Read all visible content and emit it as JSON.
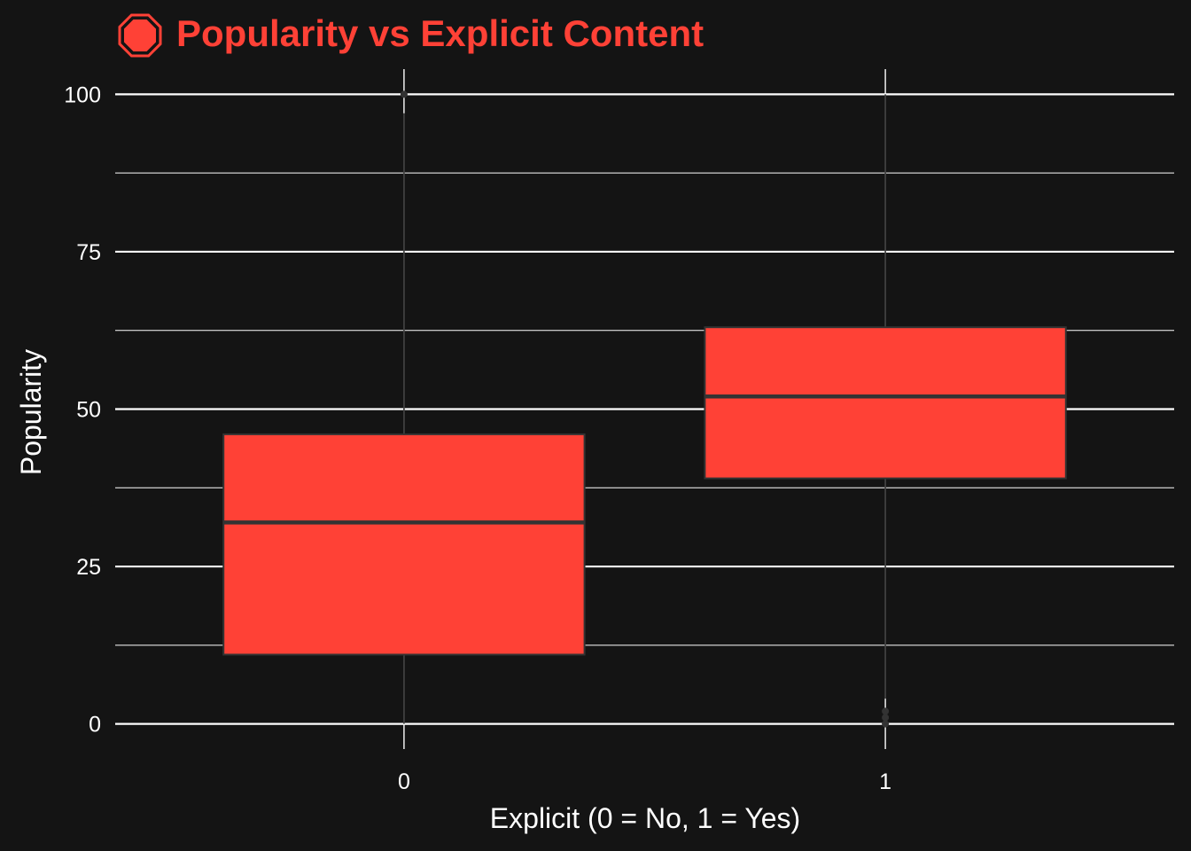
{
  "chart_data": {
    "type": "box",
    "title": "Popularity vs Explicit Content",
    "title_icon": "stop-sign-icon",
    "xlabel": "Explicit (0 = No, 1 = Yes)",
    "ylabel": "Popularity",
    "categories": [
      "0",
      "1"
    ],
    "ylim": [
      -4,
      104
    ],
    "y_ticks": [
      0,
      25,
      50,
      75,
      100
    ],
    "y_tick_labels": [
      "0",
      "25",
      "50",
      "75",
      "100"
    ],
    "grid": true,
    "boxes": [
      {
        "category": "0",
        "q1": 11,
        "median": 32,
        "q3": 46,
        "whisker_low": 0,
        "whisker_high": 97,
        "outliers": [
          100
        ]
      },
      {
        "category": "1",
        "q1": 39,
        "median": 52,
        "q3": 63,
        "whisker_low": 4,
        "whisker_high": 100,
        "outliers": [
          0,
          1,
          2
        ]
      }
    ],
    "colors": {
      "background": "#141414",
      "box_fill": "#FF4136",
      "box_outline": "#333333",
      "grid_major": "#FFFFFF",
      "grid_minor": "#FFFFFF",
      "title": "#FF4136",
      "text": "#FFFFFF",
      "outlier": "#333333"
    }
  }
}
